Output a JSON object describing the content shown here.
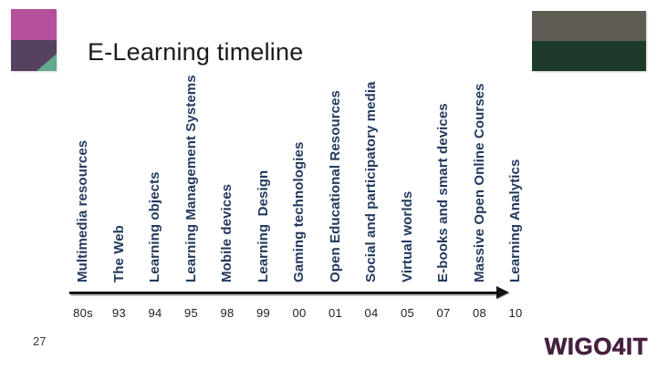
{
  "slide": {
    "title": "E-Learning timeline",
    "page_number": "27"
  },
  "branding": {
    "wordmark": "WIGO4IT",
    "wordmark_color": "#45203f",
    "logo_mark_colors": {
      "pink": "#b5509c",
      "purple": "#564260",
      "green": "#62aa8b"
    },
    "band_logo_colors": {
      "gray": "#5e5b53",
      "dark_green": "#1d3b2b"
    }
  },
  "timeline": {
    "label_color": "#223a5e",
    "axis_color": "#141414",
    "items": [
      {
        "label": "Multimedia resources",
        "year": "80s"
      },
      {
        "label": "The Web",
        "year": "93"
      },
      {
        "label": "Learning objects",
        "year": "94"
      },
      {
        "label": "Learning Management Systems",
        "year": "95"
      },
      {
        "label": "Mobile devices",
        "year": "98"
      },
      {
        "label": "Learning  Design",
        "year": "99"
      },
      {
        "label": "Gaming technologies",
        "year": "00"
      },
      {
        "label": "Open Educational Resources",
        "year": "01"
      },
      {
        "label": "Social and participatory media",
        "year": "04"
      },
      {
        "label": "Virtual worlds",
        "year": "05"
      },
      {
        "label": "E-books and smart devices",
        "year": "07"
      },
      {
        "label": "Massive Open Online Courses",
        "year": "08"
      },
      {
        "label": "Learning Analytics",
        "year": "10"
      }
    ]
  }
}
